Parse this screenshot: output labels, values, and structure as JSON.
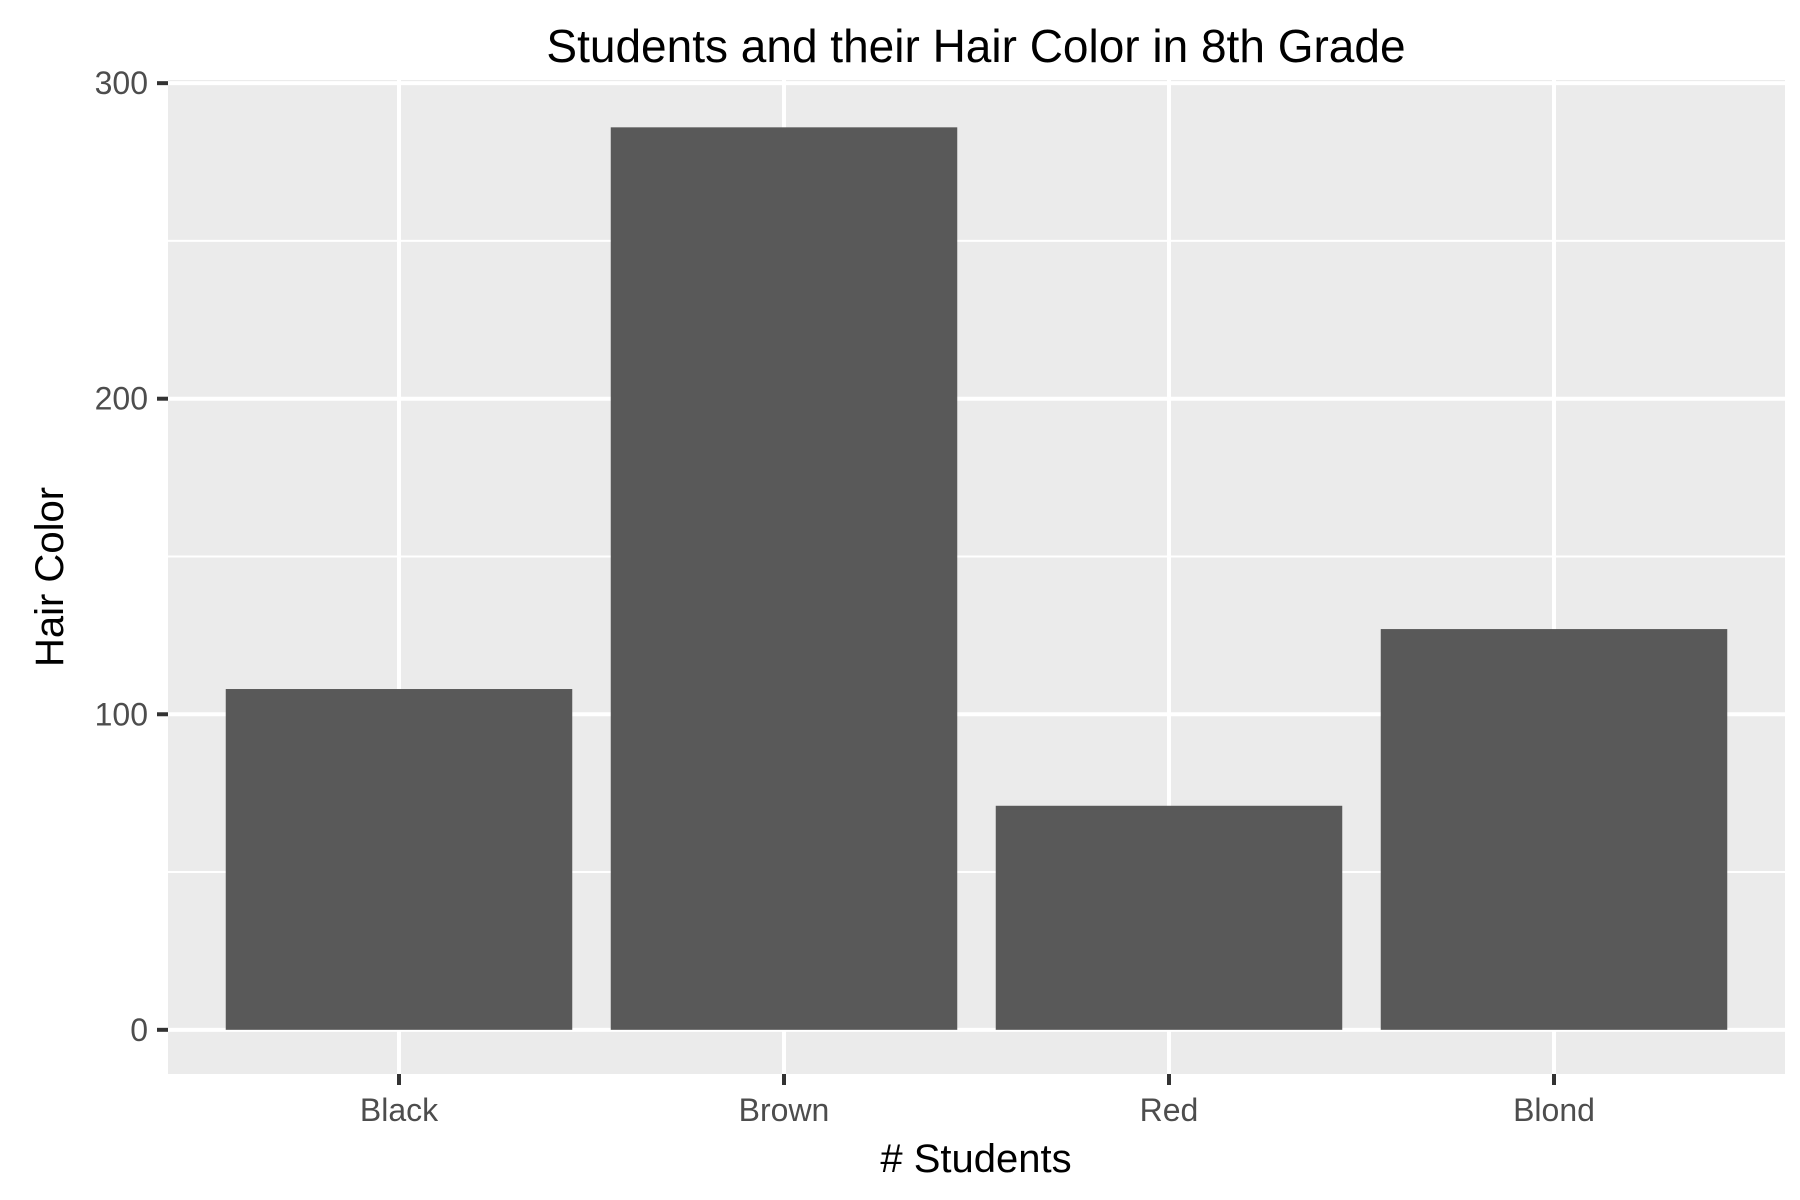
{
  "chart_data": {
    "type": "bar",
    "title": "Students and their Hair Color in 8th Grade",
    "xlabel": "# Students",
    "ylabel": "Hair Color",
    "categories": [
      "Black",
      "Brown",
      "Red",
      "Blond"
    ],
    "values": [
      108,
      286,
      71,
      127
    ],
    "ylim": [
      -14,
      301
    ],
    "yticks": [
      0,
      100,
      200,
      300
    ],
    "grid": true,
    "legend": "none",
    "colors": {
      "panel_background": "#ebebeb",
      "gridline": "#ffffff",
      "bar_fill": "#595959",
      "tick_mark": "#333333"
    }
  }
}
